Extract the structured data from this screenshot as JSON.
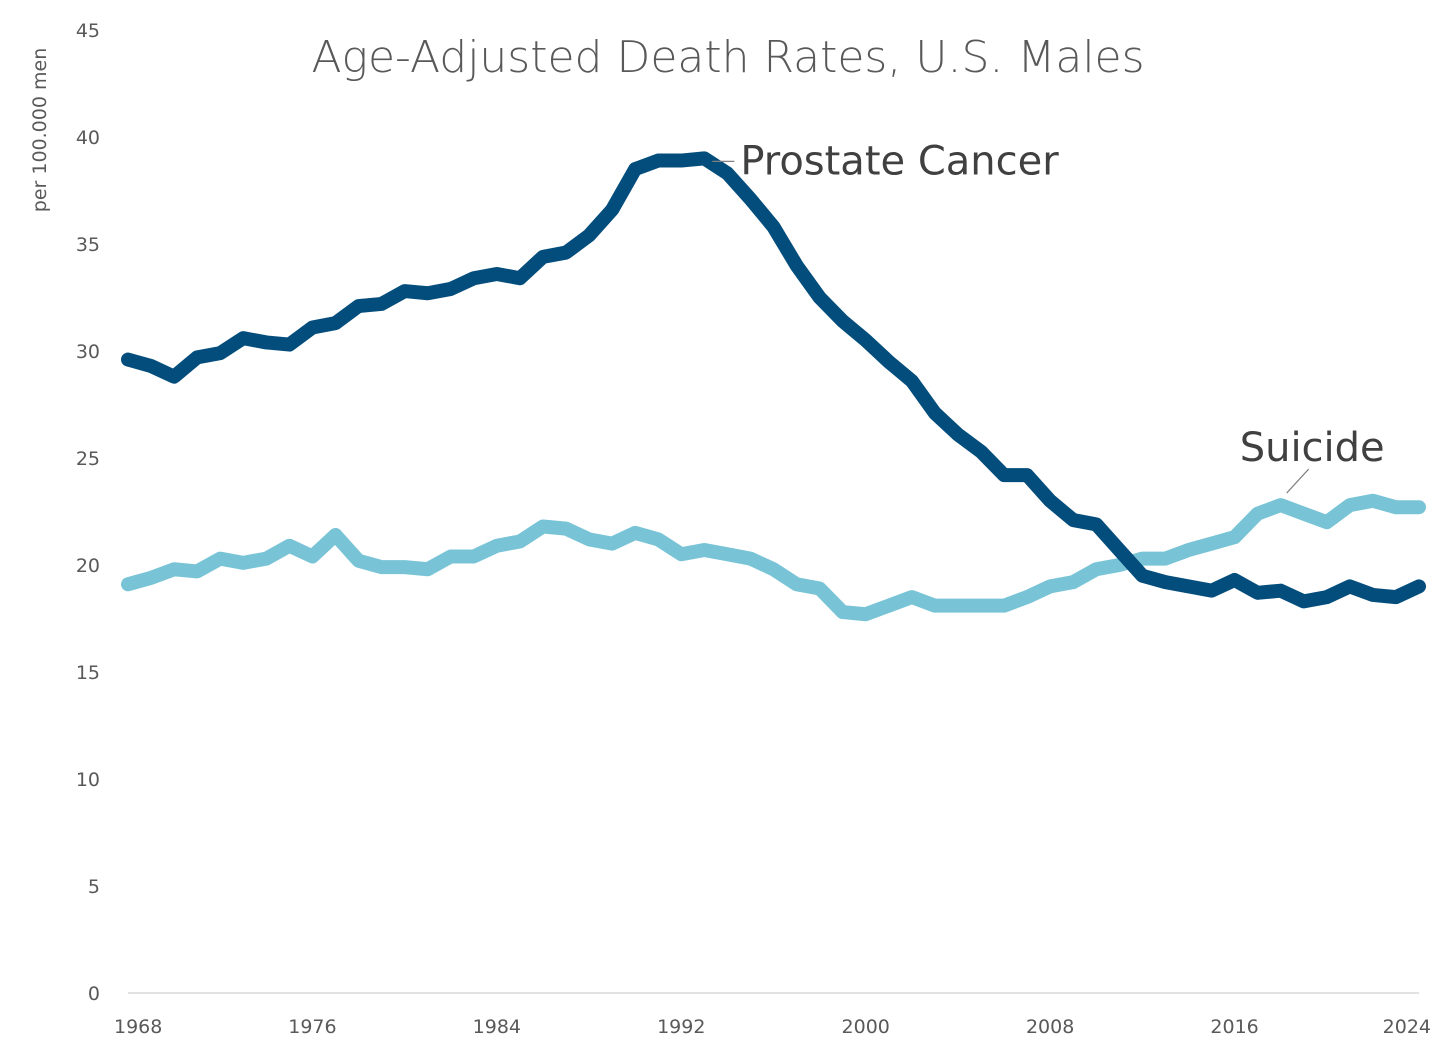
{
  "chart_data": {
    "type": "line",
    "title": "Age-Adjusted Death Rates, U.S. Males",
    "ylabel": "per 100.000 men",
    "xlabel": "",
    "xlim": [
      1968,
      2024
    ],
    "ylim": [
      0,
      45
    ],
    "x_ticks": [
      "1968",
      "1976",
      "1984",
      "1992",
      "2000",
      "2008",
      "2016",
      "2024"
    ],
    "x_tick_values": [
      1968,
      1976,
      1984,
      1992,
      2000,
      2008,
      2016,
      2024
    ],
    "y_ticks": [
      "0",
      "5",
      "10",
      "15",
      "20",
      "25",
      "30",
      "35",
      "40",
      "45"
    ],
    "y_tick_values": [
      0,
      5,
      10,
      15,
      20,
      25,
      30,
      35,
      40,
      45
    ],
    "grid": false,
    "legend": "none (series labelled directly on chart)",
    "x": [
      1968,
      1969,
      1970,
      1971,
      1972,
      1973,
      1974,
      1975,
      1976,
      1977,
      1978,
      1979,
      1980,
      1981,
      1982,
      1983,
      1984,
      1985,
      1986,
      1987,
      1988,
      1989,
      1990,
      1991,
      1992,
      1993,
      1994,
      1995,
      1996,
      1997,
      1998,
      1999,
      2000,
      2001,
      2002,
      2003,
      2004,
      2005,
      2006,
      2007,
      2008,
      2009,
      2010,
      2011,
      2012,
      2013,
      2014,
      2015,
      2016,
      2017,
      2018,
      2019,
      2020,
      2021,
      2022,
      2023,
      2024
    ],
    "series": [
      {
        "name": "Prostate Cancer",
        "color": "#034d7c",
        "values": [
          29.6,
          29.3,
          28.8,
          29.7,
          29.9,
          30.6,
          30.4,
          30.3,
          31.1,
          31.3,
          32.1,
          32.2,
          32.8,
          32.7,
          32.9,
          33.4,
          33.6,
          33.4,
          34.4,
          34.6,
          35.4,
          36.6,
          38.5,
          38.9,
          38.9,
          39.0,
          38.3,
          37.1,
          35.8,
          34.0,
          32.5,
          31.4,
          30.5,
          29.5,
          28.6,
          27.1,
          26.1,
          25.3,
          24.2,
          24.2,
          23.0,
          22.1,
          21.9,
          20.7,
          19.5,
          19.2,
          19.0,
          18.8,
          19.3,
          18.7,
          18.8,
          18.3,
          18.5,
          19.0,
          18.6,
          18.5,
          19.0
        ]
      },
      {
        "name": "Suicide",
        "color": "#78c4d6",
        "values": [
          19.1,
          19.4,
          19.8,
          19.7,
          20.3,
          20.1,
          20.3,
          20.9,
          20.4,
          21.4,
          20.2,
          19.9,
          19.9,
          19.8,
          20.4,
          20.4,
          20.9,
          21.1,
          21.8,
          21.7,
          21.2,
          21.0,
          21.5,
          21.2,
          20.5,
          20.7,
          20.5,
          20.3,
          19.8,
          19.1,
          18.9,
          17.8,
          17.7,
          18.1,
          18.5,
          18.1,
          18.1,
          18.1,
          18.1,
          18.5,
          19.0,
          19.2,
          19.8,
          20.0,
          20.3,
          20.3,
          20.7,
          21.0,
          21.3,
          22.4,
          22.8,
          22.4,
          22.0,
          22.8,
          23.0,
          22.7,
          22.7
        ]
      }
    ],
    "annotations": [
      {
        "text": "Prostate Cancer",
        "series": 0,
        "at_x": 1993
      },
      {
        "text": "Suicide",
        "series": 1,
        "at_x": 2018
      }
    ]
  }
}
